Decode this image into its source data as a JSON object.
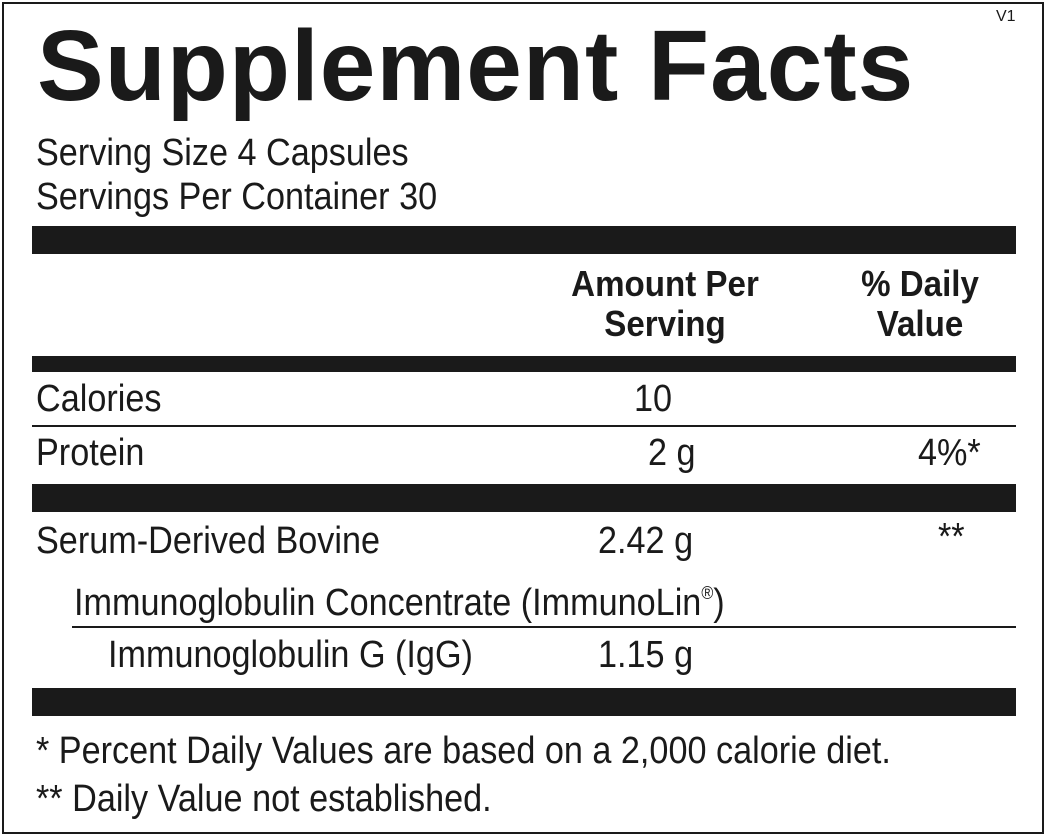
{
  "title": "Supplement Facts",
  "version": "V1",
  "serving": {
    "size": "Serving Size 4 Capsules",
    "per_container": "Servings Per Container 30"
  },
  "header": {
    "amount_line1": "Amount Per",
    "amount_line2": "Serving",
    "dv_line1": "% Daily",
    "dv_line2": "Value"
  },
  "rows": {
    "calories": {
      "name": "Calories",
      "amount": "10",
      "dv": ""
    },
    "protein": {
      "name": "Protein",
      "amount": "2 g",
      "dv": "4%*"
    },
    "sdbi": {
      "name_line1": "Serum-Derived Bovine",
      "name_line2": "Immunoglobulin Concentrate (ImmunoLin",
      "name_reg": "®",
      "name_close": ")",
      "amount": "2.42 g",
      "dv": "**"
    },
    "igg": {
      "name": "Immunoglobulin G (IgG)",
      "amount": "1.15 g",
      "dv": ""
    }
  },
  "footnotes": {
    "dv_note": "* Percent Daily Values are based on a 2,000 calorie diet.",
    "not_established": "** Daily Value not established."
  }
}
